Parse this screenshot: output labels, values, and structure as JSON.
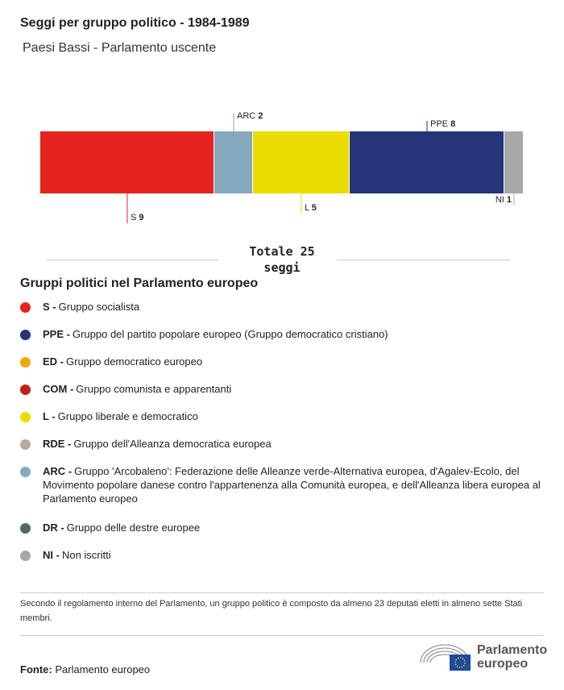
{
  "title": "Seggi per gruppo politico - 1984-1989",
  "subtitle": "Paesi Bassi - Parlamento uscente",
  "chart_data": {
    "type": "bar",
    "orientation": "horizontal-stacked",
    "categories": [
      "S",
      "ARC",
      "L",
      "PPE",
      "NI"
    ],
    "values": [
      9,
      2,
      5,
      8,
      1
    ],
    "colors": [
      "#e52421",
      "#84a9bf",
      "#ebdc00",
      "#263579",
      "#a8a8a8"
    ],
    "label_side": [
      "below",
      "above",
      "below",
      "above",
      "below"
    ],
    "total_label": "Totale 25 seggi"
  },
  "legend_title": "Gruppi politici nel Parlamento europeo",
  "legend": [
    {
      "abbr": "S -",
      "text": "Gruppo socialista",
      "color": "#e52421"
    },
    {
      "abbr": "PPE -",
      "text": "Gruppo del partito popolare europeo (Gruppo democratico cristiano)",
      "color": "#263579"
    },
    {
      "abbr": "ED -",
      "text": "Gruppo democratico europeo",
      "color": "#e9ab00"
    },
    {
      "abbr": "COM -",
      "text": "Gruppo comunista e apparentanti",
      "color": "#c1201f"
    },
    {
      "abbr": "L -",
      "text": "Gruppo liberale e democratico",
      "color": "#ebdc00"
    },
    {
      "abbr": "RDE -",
      "text": "Gruppo dell'Alleanza democratica europea",
      "color": "#b5aa9c"
    },
    {
      "abbr": "ARC -",
      "text": "Gruppo 'Arcobaleno': Federazione delle Alleanze verde-Alternativa europea, d'Agalev-Ecolo, del Movimento popolare danese contro l'appartenenza alla Comunità europea, e dell'Alleanza libera europea al Parlamento europeo",
      "color": "#84a9bf"
    },
    {
      "abbr": "DR -",
      "text": "Gruppo delle destre europee",
      "color": "#4f6b5f"
    },
    {
      "abbr": "NI -",
      "text": "Non iscritti",
      "color": "#a8a8a8"
    }
  ],
  "note": "Secondo il regolamento interno del Parlamento, un gruppo politico è composto da almeno 23 deputati eletti in almeno sette Stati membri.",
  "source_label": "Fonte:",
  "source": "Parlamento europeo",
  "logo_text": "Parlamento europeo"
}
